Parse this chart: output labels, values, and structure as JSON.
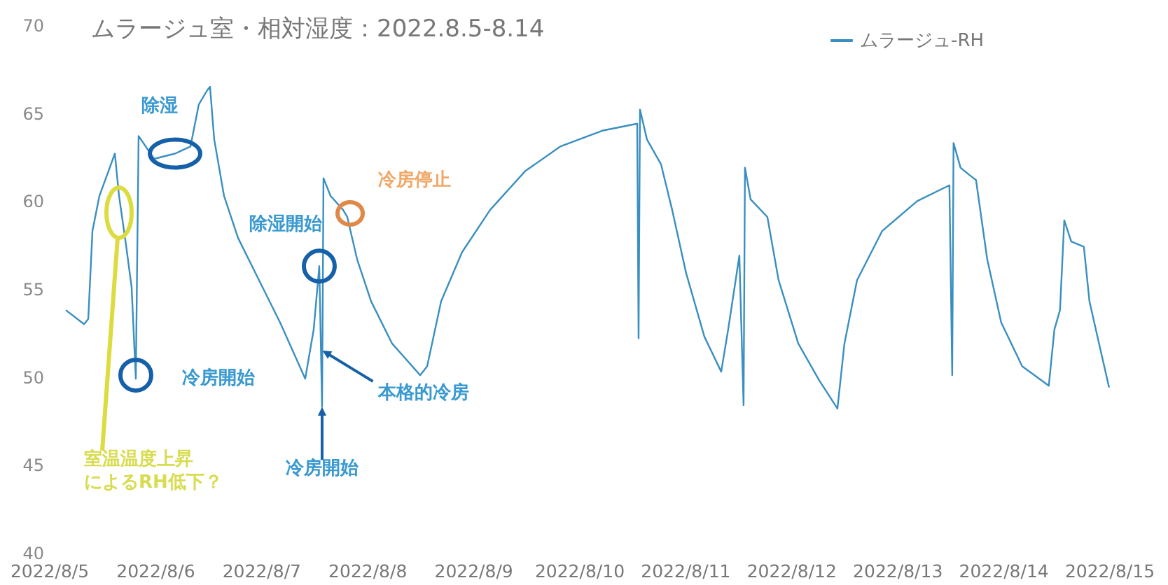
{
  "chart_data": {
    "type": "line",
    "title": "ムラージュ室・相対湿度：2022.8.5-8.14",
    "x": [
      "2022-08-05T03:48",
      "2022-08-05T07:56",
      "2022-08-05T08:53",
      "2022-08-05T09:50",
      "2022-08-05T11:25",
      "2022-08-05T13:19",
      "2022-08-05T14:54",
      "2022-08-05T15:51",
      "2022-08-05T17:26",
      "2022-08-05T18:42",
      "2022-08-05T19:39",
      "2022-08-05T20:17",
      "2022-08-05T23:47",
      "2022-08-06T04:32",
      "2022-08-06T08:01",
      "2022-08-06T09:55",
      "2022-08-06T11:49",
      "2022-08-06T12:27",
      "2022-08-06T13:24",
      "2022-08-06T15:37",
      "2022-08-06T18:48",
      "2022-08-06T23:33",
      "2022-08-07T04:18",
      "2022-08-07T10:00",
      "2022-08-07T11:55",
      "2022-08-07T13:11",
      "2022-08-07T13:49",
      "2022-08-07T14:08",
      "2022-08-07T15:43",
      "2022-08-07T18:34",
      "2022-08-07T19:31",
      "2022-08-07T21:44",
      "2022-08-08T00:55",
      "2022-08-08T05:40",
      "2022-08-08T12:01",
      "2022-08-08T13:36",
      "2022-08-08T16:46",
      "2022-08-08T21:31",
      "2022-08-09T03:52",
      "2022-08-09T11:47",
      "2022-08-09T19:43",
      "2022-08-10T05:13",
      "2022-08-10T13:09",
      "2022-08-10T13:28",
      "2022-08-10T13:47",
      "2022-08-10T15:22",
      "2022-08-10T18:32",
      "2022-08-10T21:04",
      "2022-08-11T00:14",
      "2022-08-11T04:21",
      "2022-08-11T08:10",
      "2022-08-11T09:45",
      "2022-08-11T12:17",
      "2022-08-11T13:14",
      "2022-08-11T13:33",
      "2022-08-11T14:49",
      "2022-08-11T18:37",
      "2022-08-11T21:10",
      "2022-08-12T01:37",
      "2022-08-12T06:22",
      "2022-08-12T10:29",
      "2022-08-12T12:04",
      "2022-08-12T14:55",
      "2022-08-12T20:37",
      "2022-08-13T04:32",
      "2022-08-13T11:50",
      "2022-08-13T12:28",
      "2022-08-13T12:46",
      "2022-08-13T14:21",
      "2022-08-13T16:16",
      "2022-08-13T17:51",
      "2022-08-13T20:23",
      "2022-08-13T23:33",
      "2022-08-14T04:19",
      "2022-08-14T10:20",
      "2022-08-14T11:36",
      "2022-08-14T12:52",
      "2022-08-14T13:50",
      "2022-08-14T15:25",
      "2022-08-14T18:16",
      "2022-08-14T19:32",
      "2022-08-14T22:04",
      "2022-08-14T23:59"
    ],
    "series": [
      {
        "name": "ムラージュ-RH",
        "color": "#3a8fc0",
        "values": [
          53.8,
          53.0,
          53.3,
          58.3,
          60.3,
          61.6,
          62.7,
          60.3,
          57.5,
          55.1,
          49.9,
          63.7,
          62.4,
          62.7,
          63.1,
          65.5,
          66.3,
          66.5,
          63.5,
          60.3,
          57.9,
          55.5,
          53.1,
          49.9,
          52.7,
          56.3,
          48.3,
          61.3,
          60.3,
          59.5,
          59.1,
          56.7,
          54.3,
          51.9,
          50.1,
          50.6,
          54.3,
          57.1,
          59.5,
          61.7,
          63.1,
          64.0,
          64.4,
          52.2,
          65.2,
          63.5,
          62.1,
          59.5,
          55.9,
          52.3,
          50.3,
          52.7,
          56.9,
          48.4,
          61.9,
          60.1,
          59.1,
          55.5,
          51.9,
          49.8,
          48.2,
          51.9,
          55.5,
          58.3,
          60.0,
          60.9,
          50.1,
          63.3,
          61.9,
          61.5,
          61.2,
          56.7,
          53.1,
          50.6,
          49.5,
          52.7,
          53.8,
          58.9,
          57.7,
          57.4,
          54.3,
          51.5,
          49.4
        ]
      }
    ],
    "xlim": [
      "2022-08-05",
      "2022-08-15"
    ],
    "xticks": [
      {
        "value": "2022-08-05",
        "label": "2022/8/5"
      },
      {
        "value": "2022-08-06",
        "label": "2022/8/6"
      },
      {
        "value": "2022-08-07",
        "label": "2022/8/7"
      },
      {
        "value": "2022-08-08",
        "label": "2022/8/8"
      },
      {
        "value": "2022-08-09",
        "label": "2022/8/9"
      },
      {
        "value": "2022-08-10",
        "label": "2022/8/10"
      },
      {
        "value": "2022-08-11",
        "label": "2022/8/11"
      },
      {
        "value": "2022-08-12",
        "label": "2022/8/12"
      },
      {
        "value": "2022-08-13",
        "label": "2022/8/13"
      },
      {
        "value": "2022-08-14",
        "label": "2022/8/14"
      },
      {
        "value": "2022-08-15",
        "label": "2022/8/15"
      }
    ],
    "ylim": [
      40,
      70
    ],
    "yticks": [
      40,
      45,
      50,
      55,
      60,
      65,
      70
    ],
    "legend": "top right",
    "annotations": [
      {
        "text": "除湿",
        "x": "2022-08-06T04:32",
        "y": 62.7
      },
      "室温温度上昇によるRH低下？",
      {
        "text": "冷房開始",
        "x": "2022-08-05T19:39",
        "y": 50.1
      },
      {
        "text": "除湿開始",
        "x": "2022-08-07T13:11",
        "y": 56.3
      },
      {
        "text": "冷房停止",
        "x": "2022-08-07T20:10",
        "y": 59.3
      },
      {
        "text": "冷房開始",
        "x": "2022-08-07T13:49",
        "y": 48.3
      },
      {
        "text": "本格的冷房",
        "x": "2022-08-07T13:54",
        "y": 51.5
      }
    ]
  }
}
